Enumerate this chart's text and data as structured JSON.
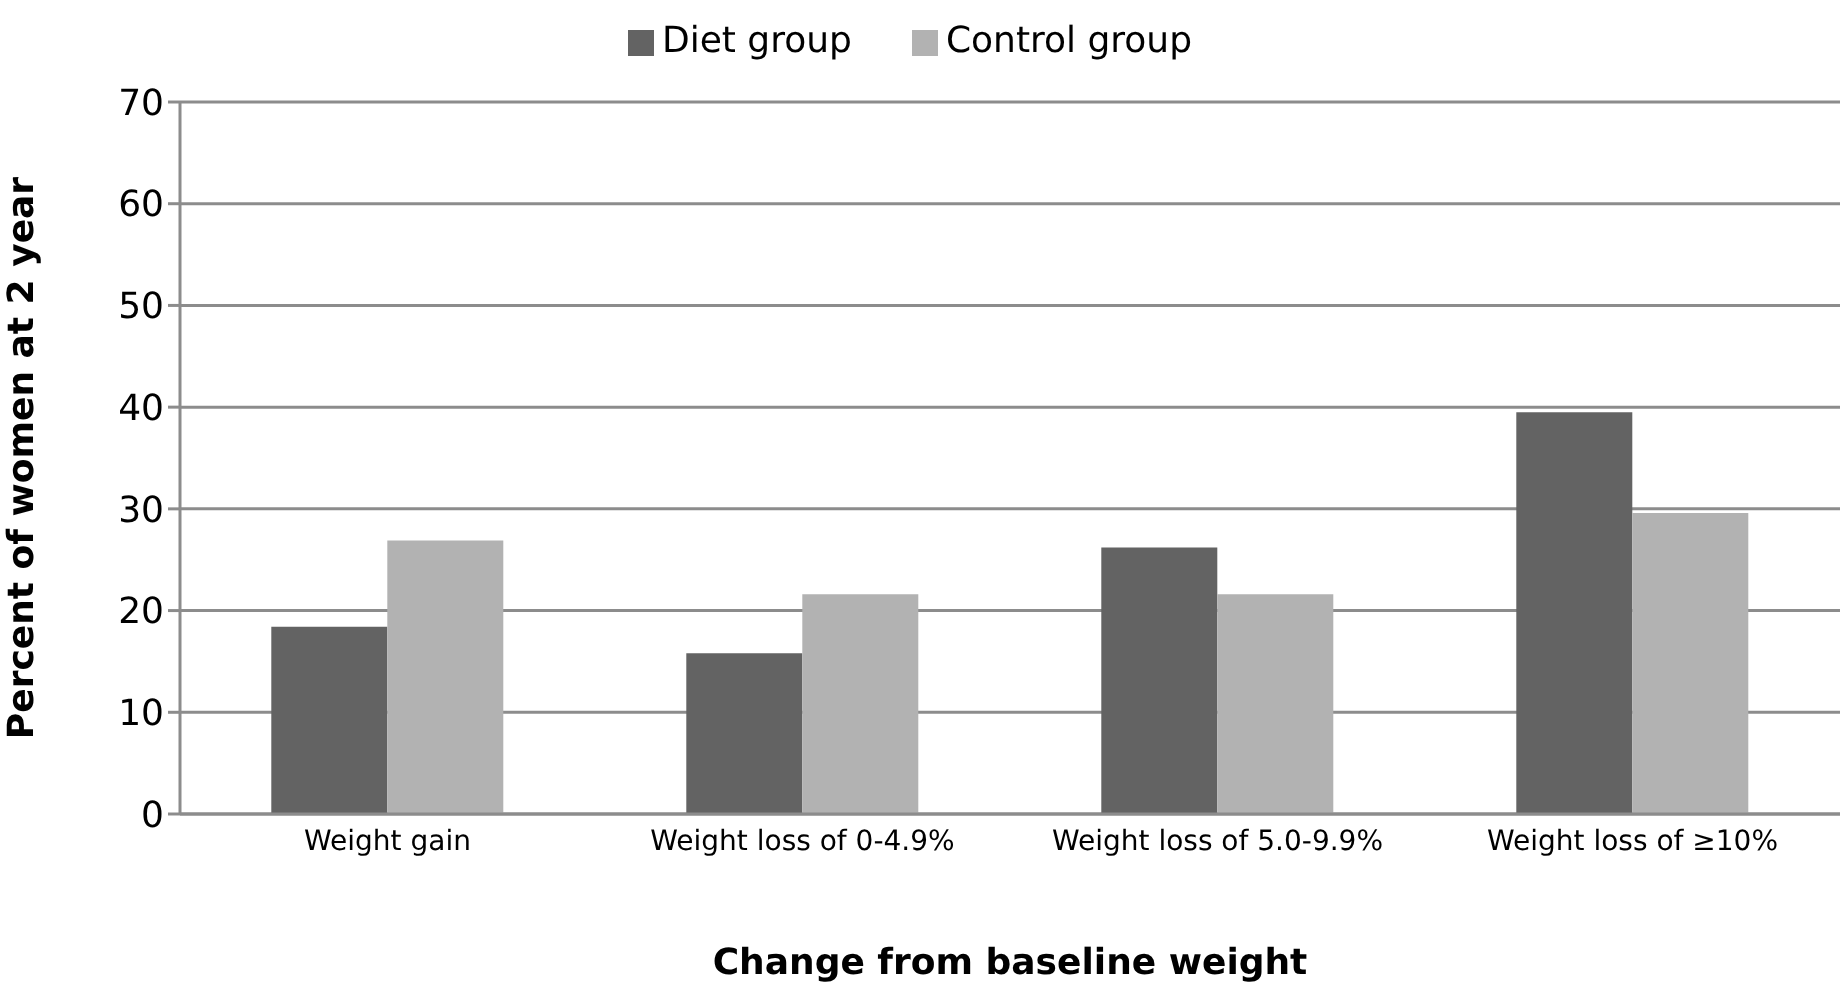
{
  "chart_data": {
    "type": "bar",
    "xlabel": "Change from baseline weight",
    "ylabel": "Percent of women at 2 year",
    "categories": [
      "Weight gain",
      "Weight loss of 0-4.9%",
      "Weight loss of 5.0-9.9%",
      "Weight loss of ≥10%"
    ],
    "series": [
      {
        "name": "Diet group",
        "color": "#636363",
        "values": [
          18.4,
          15.8,
          26.2,
          39.5
        ]
      },
      {
        "name": "Control group",
        "color": "#b2b2b2",
        "values": [
          26.9,
          21.6,
          21.6,
          29.6
        ]
      }
    ],
    "ylim": [
      0,
      70
    ],
    "yticks": [
      0,
      10,
      20,
      30,
      40,
      50,
      60,
      70
    ],
    "grid": "y",
    "legend": "top"
  }
}
